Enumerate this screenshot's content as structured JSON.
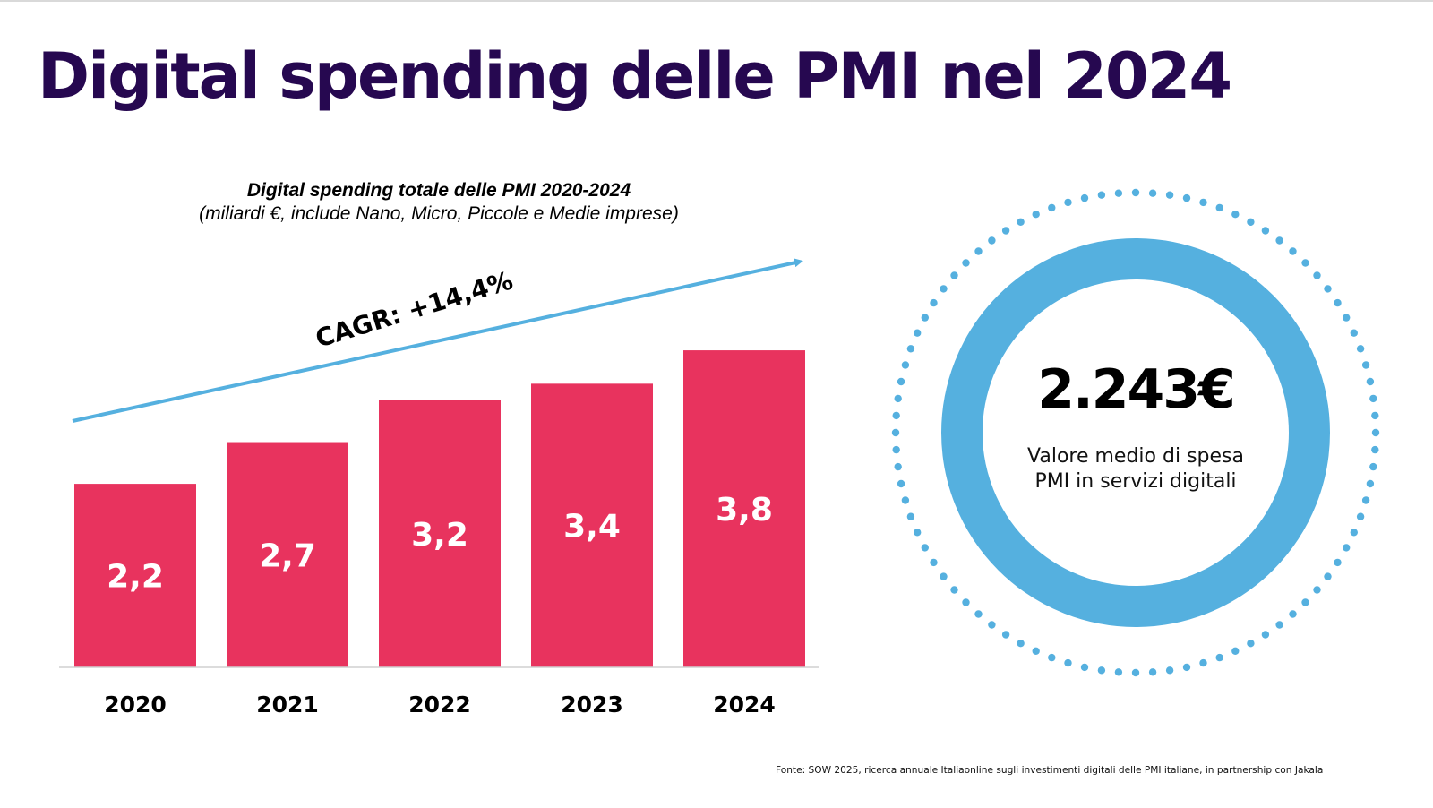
{
  "page": {
    "title": "Digital spending delle PMI nel 2024",
    "source": "Fonte: SOW 2025, ricerca annuale Italiaonline sugli investimenti digitali delle PMI italiane, in partnership con Jakala"
  },
  "colors": {
    "title": "#260850",
    "bar": "#E8335E",
    "accent_blue": "#55B0DF",
    "text": "#000000"
  },
  "kpi": {
    "value": "2.243€",
    "caption_line1": "Valore medio di spesa",
    "caption_line2": "PMI in servizi digitali"
  },
  "chart_data": {
    "type": "bar",
    "title": "Digital spending totale delle PMI 2020-2024",
    "subtitle": "(miliardi €, include Nano, Micro, Piccole e Medie imprese)",
    "categories": [
      "2020",
      "2021",
      "2022",
      "2023",
      "2024"
    ],
    "values": [
      2.2,
      2.7,
      3.2,
      3.4,
      3.8
    ],
    "value_labels": [
      "2,2",
      "2,7",
      "3,2",
      "3,4",
      "3,8"
    ],
    "xlabel": "",
    "ylabel": "miliardi €",
    "ylim": [
      0,
      5.1
    ],
    "grid": false,
    "legend": "none",
    "annotations": [
      {
        "type": "trend-arrow",
        "text": "CAGR: +14,4%"
      }
    ]
  }
}
